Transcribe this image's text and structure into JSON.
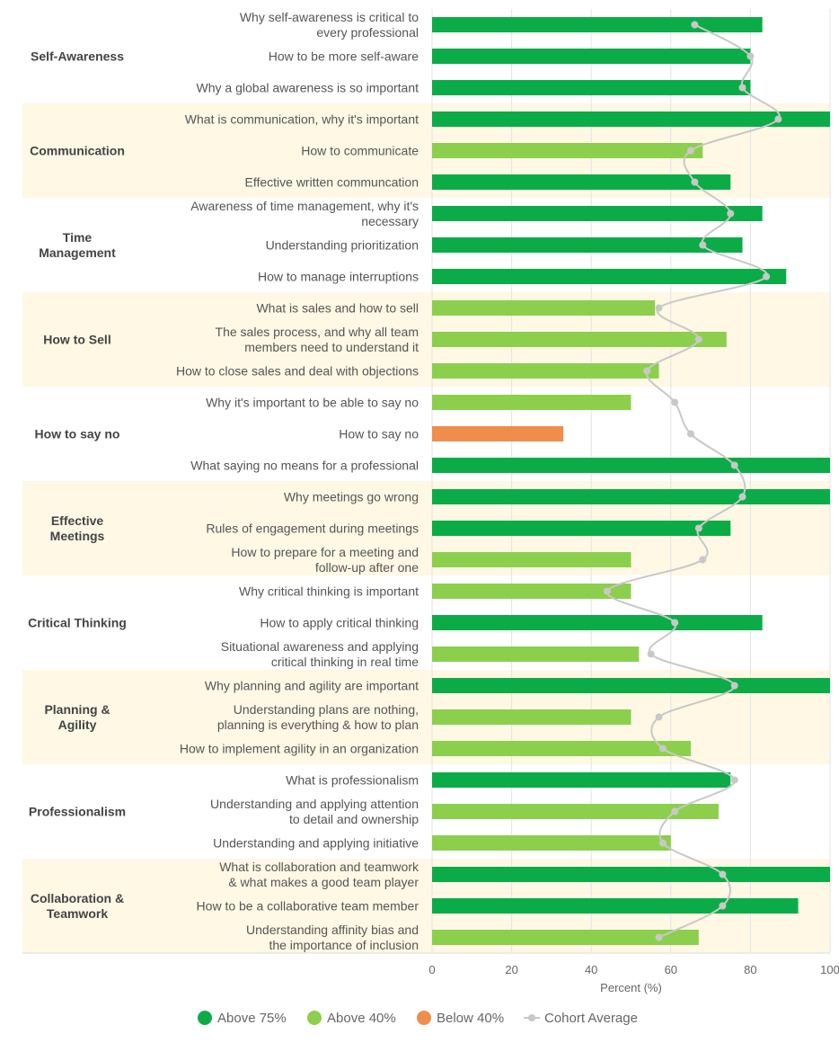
{
  "chart_data": {
    "type": "bar",
    "orientation": "horizontal",
    "xlabel": "Percent (%)",
    "xlim": [
      0,
      100
    ],
    "xticks": [
      0,
      20,
      40,
      60,
      80,
      100
    ],
    "grid": true,
    "legend_position": "bottom",
    "colors": {
      "Above 75%": "#0bac47",
      "Above 40%": "#8ccf4d",
      "Below 40%": "#ef8d4c",
      "Cohort Average": "#c8c8c8",
      "band": "#fef8e4"
    },
    "legend": [
      {
        "key": "Above 75%",
        "label": "Above 75%",
        "marker": "dot"
      },
      {
        "key": "Above 40%",
        "label": "Above 40%",
        "marker": "dot"
      },
      {
        "key": "Below 40%",
        "label": "Below 40%",
        "marker": "dot"
      },
      {
        "key": "Cohort Average",
        "label": "Cohort Average",
        "marker": "line"
      }
    ],
    "groups": [
      {
        "name": [
          "Self-Awareness"
        ],
        "items": [
          {
            "label": [
              "Why self-awareness is critical to",
              "every professional"
            ],
            "value": 83,
            "average": 66
          },
          {
            "label": [
              "How to be more self-aware"
            ],
            "value": 80,
            "average": 80
          },
          {
            "label": [
              "Why a global awareness is so important"
            ],
            "value": 80,
            "average": 78
          }
        ]
      },
      {
        "name": [
          "Communication"
        ],
        "items": [
          {
            "label": [
              "What is communication, why it's important"
            ],
            "value": 100,
            "average": 87
          },
          {
            "label": [
              "How to communicate"
            ],
            "value": 68,
            "average": 65
          },
          {
            "label": [
              "Effective written communcation"
            ],
            "value": 75,
            "average": 66
          }
        ]
      },
      {
        "name": [
          "Time",
          "Management"
        ],
        "items": [
          {
            "label": [
              "Awareness of time management, why it's",
              "necessary"
            ],
            "value": 83,
            "average": 75
          },
          {
            "label": [
              "Understanding prioritization"
            ],
            "value": 78,
            "average": 68
          },
          {
            "label": [
              "How to manage interruptions"
            ],
            "value": 89,
            "average": 84
          }
        ]
      },
      {
        "name": [
          "How to Sell"
        ],
        "items": [
          {
            "label": [
              "What is sales and how to sell"
            ],
            "value": 56,
            "average": 57
          },
          {
            "label": [
              "The sales process, and why all team",
              "members need to understand it"
            ],
            "value": 74,
            "average": 67
          },
          {
            "label": [
              "How to close sales and deal with objections"
            ],
            "value": 57,
            "average": 54
          }
        ]
      },
      {
        "name": [
          "How to say no"
        ],
        "items": [
          {
            "label": [
              "Why it's important to be able to say no"
            ],
            "value": 50,
            "average": 61
          },
          {
            "label": [
              "How to say no"
            ],
            "value": 33,
            "average": 65
          },
          {
            "label": [
              "What saying no means for a professional"
            ],
            "value": 100,
            "average": 76
          }
        ]
      },
      {
        "name": [
          "Effective",
          "Meetings"
        ],
        "items": [
          {
            "label": [
              "Why meetings go wrong"
            ],
            "value": 100,
            "average": 78
          },
          {
            "label": [
              "Rules of engagement during meetings"
            ],
            "value": 75,
            "average": 67
          },
          {
            "label": [
              "How to prepare for a meeting and",
              "follow-up after one"
            ],
            "value": 50,
            "average": 68
          }
        ]
      },
      {
        "name": [
          "Critical Thinking"
        ],
        "items": [
          {
            "label": [
              "Why critical thinking is important"
            ],
            "value": 50,
            "average": 44
          },
          {
            "label": [
              "How to apply critical thinking"
            ],
            "value": 83,
            "average": 61
          },
          {
            "label": [
              "Situational awareness and applying",
              "critical thinking in real time"
            ],
            "value": 52,
            "average": 55
          }
        ]
      },
      {
        "name": [
          "Planning &",
          "Agility"
        ],
        "items": [
          {
            "label": [
              "Why planning and agility are important"
            ],
            "value": 100,
            "average": 76
          },
          {
            "label": [
              "Understanding plans are nothing,",
              "planning is everything & how to plan"
            ],
            "value": 50,
            "average": 57
          },
          {
            "label": [
              "How to implement agility in an organization"
            ],
            "value": 65,
            "average": 58
          }
        ]
      },
      {
        "name": [
          "Professionalism"
        ],
        "items": [
          {
            "label": [
              "What is professionalism"
            ],
            "value": 75,
            "average": 76
          },
          {
            "label": [
              "Understanding and applying attention",
              "to detail and ownership"
            ],
            "value": 72,
            "average": 61
          },
          {
            "label": [
              "Understanding and applying initiative"
            ],
            "value": 60,
            "average": 58
          }
        ]
      },
      {
        "name": [
          "Collaboration &",
          "Teamwork"
        ],
        "items": [
          {
            "label": [
              "What is collaboration and teamwork",
              "& what makes a good team player"
            ],
            "value": 100,
            "average": 73
          },
          {
            "label": [
              "How to be a collaborative team member"
            ],
            "value": 92,
            "average": 73
          },
          {
            "label": [
              "Understanding affinity bias and",
              "the importance of inclusion"
            ],
            "value": 67,
            "average": 57
          }
        ]
      }
    ]
  }
}
